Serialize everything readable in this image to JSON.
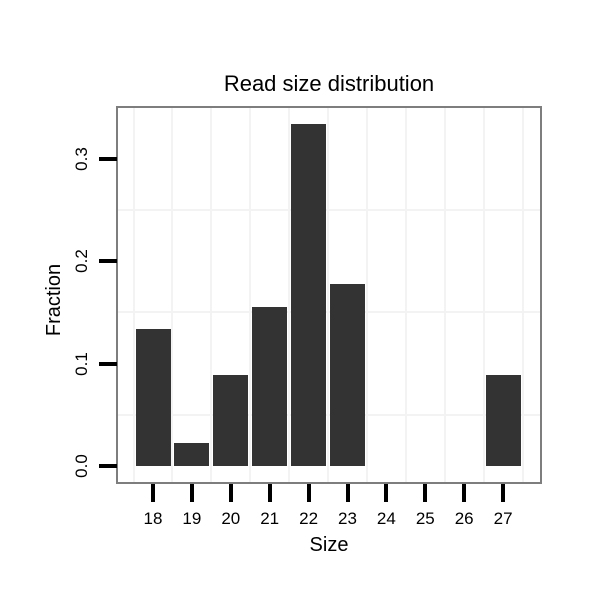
{
  "title": "Read size distribution",
  "chart_data": {
    "type": "bar",
    "title": "Read size distribution",
    "xlabel": "Size",
    "ylabel": "Fraction",
    "categories": [
      "18",
      "19",
      "20",
      "21",
      "22",
      "23",
      "24",
      "25",
      "26",
      "27"
    ],
    "values": [
      0.1333,
      0.0222,
      0.0889,
      0.1556,
      0.3333,
      0.1778,
      0,
      0,
      0,
      0.0889
    ],
    "y_ticks": [
      {
        "label": "0.0",
        "value": 0.0
      },
      {
        "label": "0.1",
        "value": 0.1
      },
      {
        "label": "0.2",
        "value": 0.2
      },
      {
        "label": "0.3",
        "value": 0.3
      }
    ],
    "y_minor_gridlines": [
      0.05,
      0.15,
      0.25
    ],
    "ylim": [
      -0.017,
      0.352
    ],
    "grid": "minor-only",
    "legend": "none",
    "bar_width_fraction": 0.9,
    "colors": {
      "bar": "#333333",
      "panel_border": "#7e7e7e",
      "grid_minor": "#f3f3f3",
      "tick": "#000000",
      "text": "#000000",
      "background": "#ffffff"
    }
  }
}
